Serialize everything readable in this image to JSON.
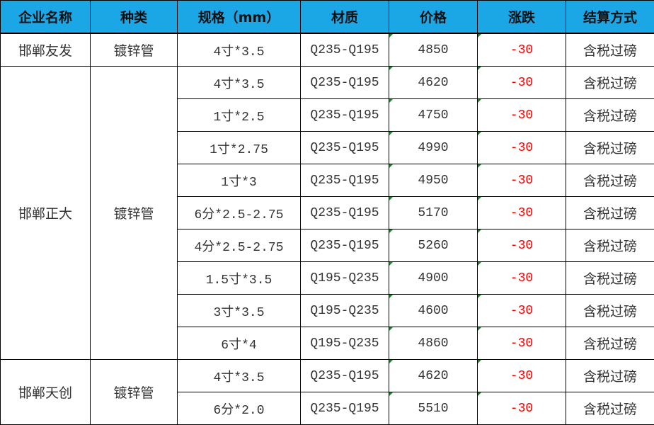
{
  "headers": [
    "企业名称",
    "种类",
    "规格（mm）",
    "材质",
    "价格",
    "涨跌",
    "结算方式"
  ],
  "groups": [
    {
      "company": "邯郸友发",
      "type": "镀锌管",
      "rows": [
        {
          "spec": "4寸*3.5",
          "material": "Q235-Q195",
          "price": "4850",
          "change": "-30",
          "settlement": "含税过磅"
        }
      ]
    },
    {
      "company": "邯郸正大",
      "type": "镀锌管",
      "rows": [
        {
          "spec": "4寸*3.5",
          "material": "Q235-Q195",
          "price": "4620",
          "change": "-30",
          "settlement": "含税过磅"
        },
        {
          "spec": "1寸*2.5",
          "material": "Q235-Q195",
          "price": "4750",
          "change": "-30",
          "settlement": "含税过磅"
        },
        {
          "spec": "1寸*2.75",
          "material": "Q235-Q195",
          "price": "4990",
          "change": "-30",
          "settlement": "含税过磅"
        },
        {
          "spec": "1寸*3",
          "material": "Q235-Q195",
          "price": "4950",
          "change": "-30",
          "settlement": "含税过磅"
        },
        {
          "spec": "6分*2.5-2.75",
          "material": "Q235-Q195",
          "price": "5170",
          "change": "-30",
          "settlement": "含税过磅"
        },
        {
          "spec": "4分*2.5-2.75",
          "material": "Q235-Q195",
          "price": "5260",
          "change": "-30",
          "settlement": "含税过磅"
        },
        {
          "spec": "1.5寸*3.5",
          "material": "Q195-Q235",
          "price": "4900",
          "change": "-30",
          "settlement": "含税过磅"
        },
        {
          "spec": "3寸*3.5",
          "material": "Q195-Q235",
          "price": "4600",
          "change": "-30",
          "settlement": "含税过磅"
        },
        {
          "spec": "6寸*4",
          "material": "Q195-Q235",
          "price": "4860",
          "change": "-30",
          "settlement": "含税过磅"
        }
      ]
    },
    {
      "company": "邯郸天创",
      "type": "镀锌管",
      "rows": [
        {
          "spec": "4寸*3.5",
          "material": "Q235-Q195",
          "price": "4620",
          "change": "-30",
          "settlement": "含税过磅"
        },
        {
          "spec": "6分*2.0",
          "material": "Q235-Q195",
          "price": "5510",
          "change": "-30",
          "settlement": "含税过磅"
        }
      ]
    }
  ],
  "colors": {
    "header_bg": "#1ba6e6",
    "change_text": "#ff0000"
  }
}
